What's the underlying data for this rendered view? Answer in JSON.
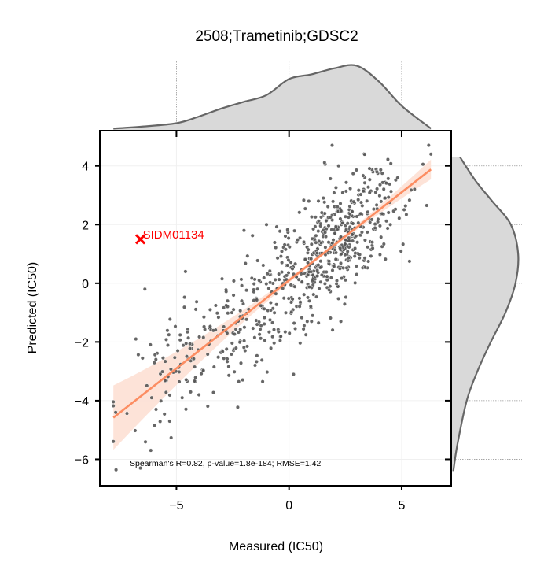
{
  "chart_data": {
    "type": "scatter",
    "title": "2508;Trametinib;GDSC2",
    "xlabel": "Measured (IC50)",
    "ylabel": "Predicted (IC50)",
    "xlim": [
      -8.4,
      7.2
    ],
    "ylim": [
      -6.9,
      5.2
    ],
    "xticks": [
      -5,
      0,
      5
    ],
    "xtick_labels": [
      "−5",
      "0",
      "5"
    ],
    "yticks": [
      4,
      2,
      0,
      -2,
      -4,
      -6
    ],
    "ytick_labels": [
      "4",
      "2",
      "0",
      "−2",
      "−4",
      "−6"
    ],
    "grid": true,
    "colors": {
      "points": "#555555",
      "regression": "#fc8d62",
      "ci_band": "#fde0d4",
      "outlier": "#ff0000",
      "marginal_fill": "#d9d9d9",
      "marginal_line": "#666666"
    },
    "regression": {
      "slope": 0.6,
      "intercept": 0.1,
      "x_range": [
        -7.8,
        6.3
      ]
    },
    "marginal_x_density": {
      "x": [
        -7.8,
        -6.5,
        -5,
        -4,
        -3,
        -2,
        -1,
        0,
        1,
        2,
        3,
        4,
        5,
        6.3
      ],
      "density": [
        0.02,
        0.05,
        0.1,
        0.2,
        0.32,
        0.42,
        0.52,
        0.76,
        0.83,
        0.92,
        0.96,
        0.72,
        0.36,
        0.02
      ]
    },
    "marginal_y_density": {
      "y": [
        -6.4,
        -5.5,
        -4,
        -3,
        -2,
        -1,
        0,
        1,
        2,
        2.8,
        3.5,
        4.3
      ],
      "density": [
        0.02,
        0.08,
        0.22,
        0.38,
        0.58,
        0.8,
        0.95,
        0.99,
        0.88,
        0.6,
        0.35,
        0.12
      ]
    },
    "outlier": {
      "label": "SIDM01134",
      "x": -6.6,
      "y": 1.5
    },
    "annotation": "Spearman's R=0.82, p-value=1.8e-184; RMSE=1.42",
    "n_points": 750,
    "sample_points": [
      [
        -7.7,
        -4.4
      ],
      [
        -6.8,
        -1.9
      ],
      [
        -6.4,
        -0.2
      ],
      [
        -6.6,
        -6.3
      ],
      [
        -6.1,
        -3.9
      ],
      [
        -5.3,
        -4.7
      ],
      [
        -4.6,
        0.4
      ],
      [
        -3.5,
        -0.9
      ],
      [
        -2.0,
        1.8
      ],
      [
        0.2,
        -3.1
      ],
      [
        2.3,
        -1.3
      ],
      [
        2.2,
        4.0
      ],
      [
        3.9,
        3.8
      ],
      [
        6.2,
        4.7
      ],
      [
        6.3,
        4.4
      ],
      [
        4.5,
        2.0
      ],
      [
        1.0,
        -1.3
      ],
      [
        -1.0,
        2.0
      ],
      [
        3.0,
        0.3
      ],
      [
        -4.0,
        -3.8
      ]
    ]
  }
}
